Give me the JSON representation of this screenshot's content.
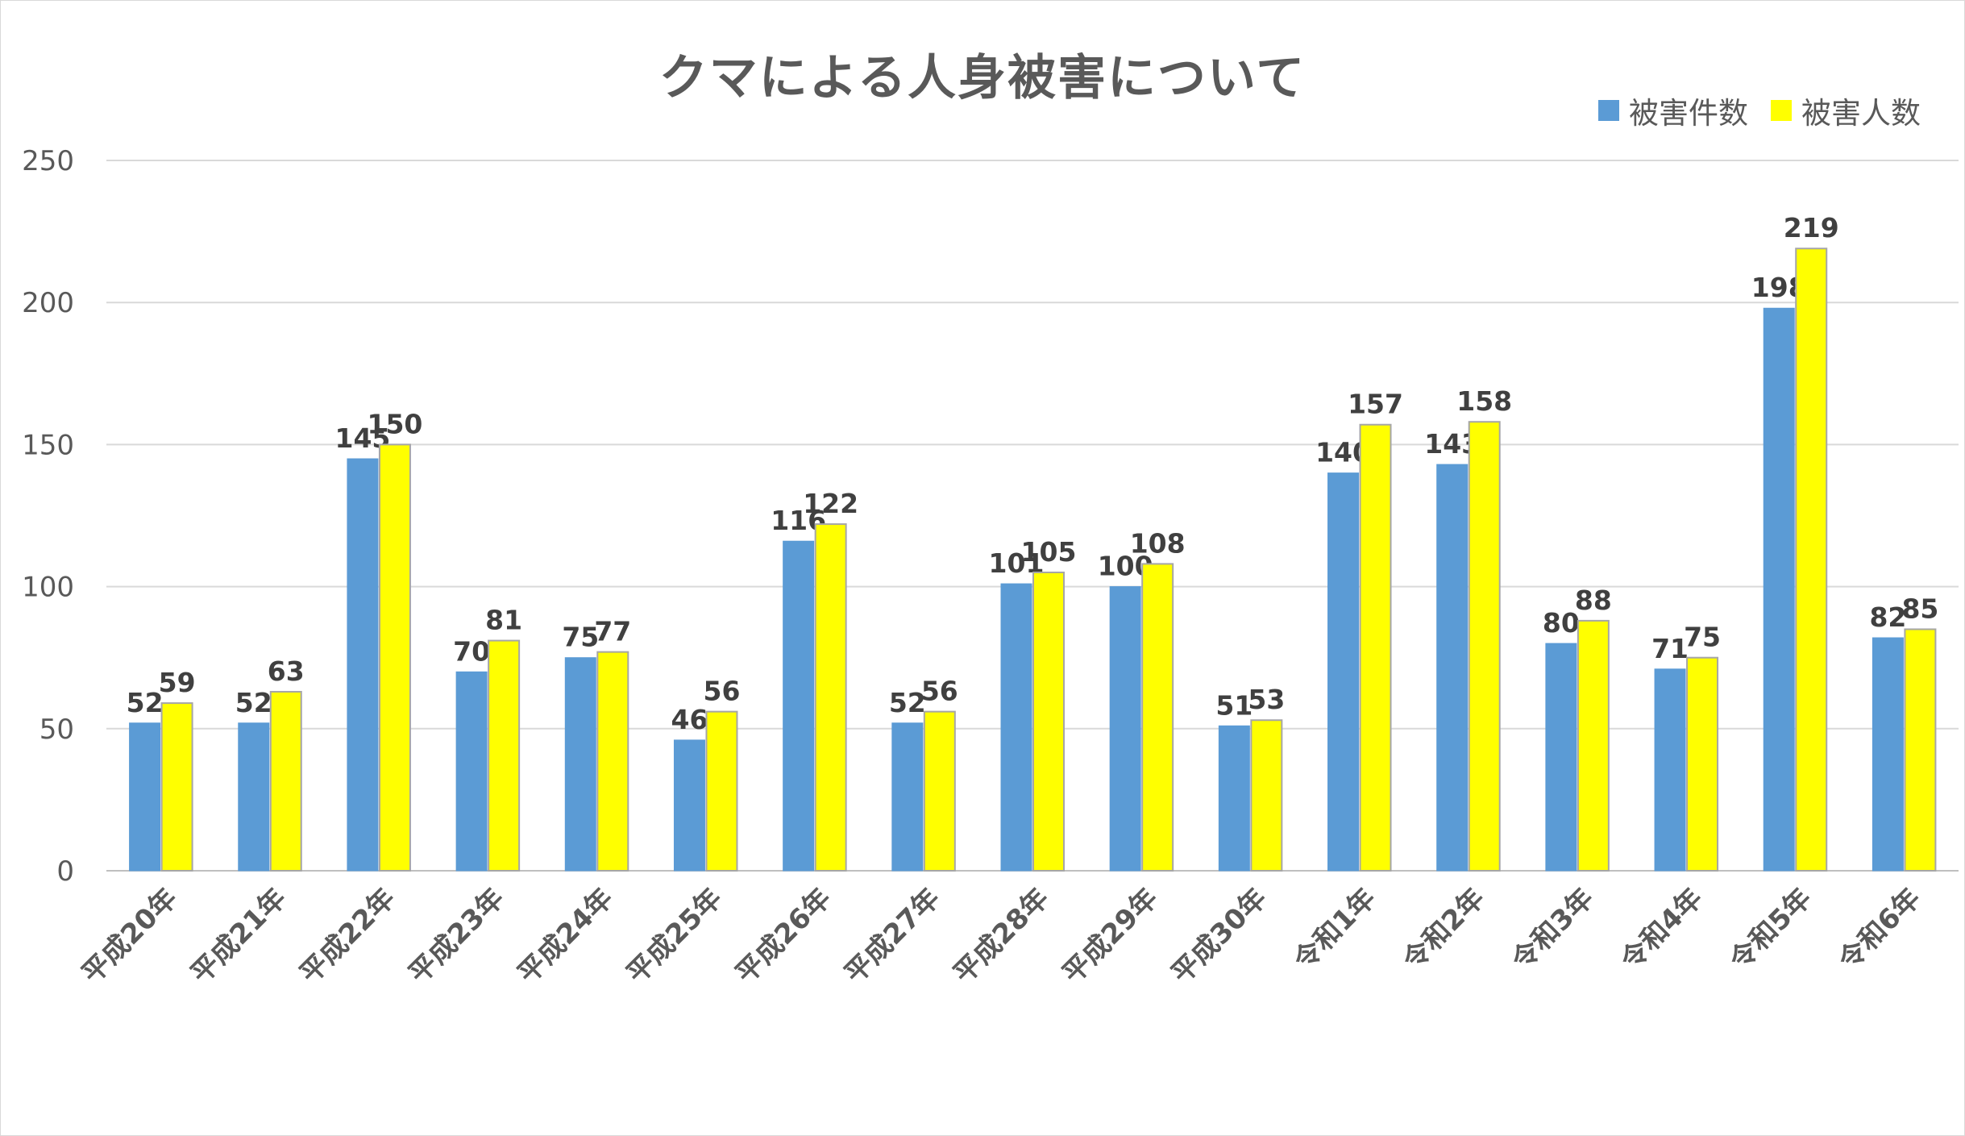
{
  "chart_data": {
    "type": "bar",
    "title": "クマによる人身被害について",
    "categories": [
      "平成20年",
      "平成21年",
      "平成22年",
      "平成23年",
      "平成24年",
      "平成25年",
      "平成26年",
      "平成27年",
      "平成28年",
      "平成29年",
      "平成30年",
      "令和1年",
      "令和2年",
      "令和3年",
      "令和4年",
      "令和5年",
      "令和6年"
    ],
    "series": [
      {
        "name": "被害件数",
        "color": "#5b9bd5",
        "values": [
          52,
          52,
          145,
          70,
          75,
          46,
          116,
          52,
          101,
          100,
          51,
          140,
          143,
          80,
          71,
          198,
          82
        ]
      },
      {
        "name": "被害人数",
        "color": "#ffff00",
        "values": [
          59,
          63,
          150,
          81,
          77,
          56,
          122,
          56,
          105,
          108,
          53,
          157,
          158,
          88,
          75,
          219,
          85
        ]
      }
    ],
    "ylim": [
      0,
      250
    ],
    "yticks": [
      0,
      50,
      100,
      150,
      200,
      250
    ],
    "grid": true,
    "legend_position": "top-right",
    "data_labels": true
  }
}
